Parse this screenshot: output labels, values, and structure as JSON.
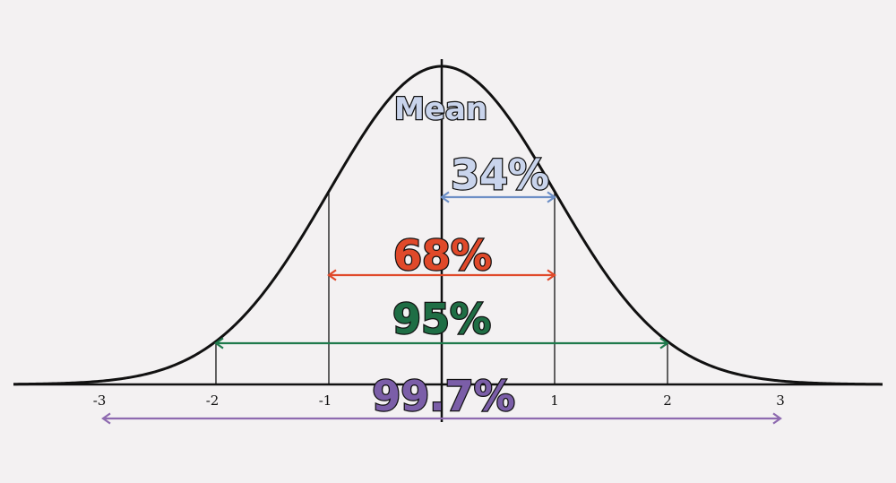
{
  "mean_label": "Mean",
  "tick_labels": [
    "-3",
    "-2",
    "-1",
    "1",
    "2",
    "3"
  ],
  "ranges": [
    {
      "label": "34%",
      "from": 0,
      "to": 1,
      "color": "#6d8fc6",
      "text_color": "#c9d4ec"
    },
    {
      "label": "68%",
      "from": -1,
      "to": 1,
      "color": "#e0492a",
      "text_color": "#e0492a"
    },
    {
      "label": "95%",
      "from": -2,
      "to": 2,
      "color": "#1f7a4c",
      "text_color": "#1f6e45"
    },
    {
      "label": "99.7%",
      "from": -3,
      "to": 3,
      "color": "#8e6ab0",
      "text_color": "#7b5ea8"
    }
  ],
  "colors": {
    "curve": "#111111",
    "axis": "#111111",
    "background": "#f3f1f2"
  }
}
